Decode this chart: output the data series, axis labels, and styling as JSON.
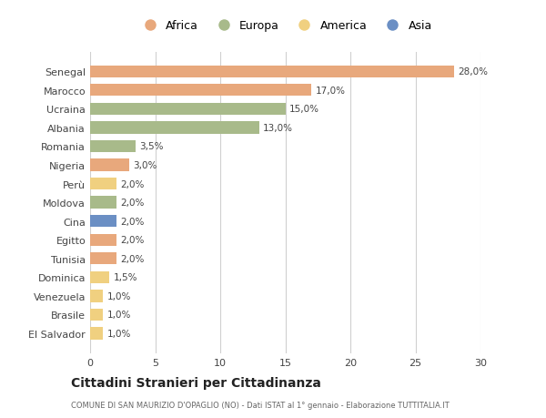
{
  "categories": [
    "El Salvador",
    "Brasile",
    "Venezuela",
    "Dominica",
    "Tunisia",
    "Egitto",
    "Cina",
    "Moldova",
    "Perù",
    "Nigeria",
    "Romania",
    "Albania",
    "Ucraina",
    "Marocco",
    "Senegal"
  ],
  "values": [
    1.0,
    1.0,
    1.0,
    1.5,
    2.0,
    2.0,
    2.0,
    2.0,
    2.0,
    3.0,
    3.5,
    13.0,
    15.0,
    17.0,
    28.0
  ],
  "bar_colors": [
    "#F0D080",
    "#F0D080",
    "#F0D080",
    "#F0D080",
    "#E8A87C",
    "#E8A87C",
    "#6B8FC4",
    "#A8BA8A",
    "#F0D080",
    "#E8A87C",
    "#A8BA8A",
    "#A8BA8A",
    "#A8BA8A",
    "#E8A87C",
    "#E8A87C"
  ],
  "labels": [
    "1,0%",
    "1,0%",
    "1,0%",
    "1,5%",
    "2,0%",
    "2,0%",
    "2,0%",
    "2,0%",
    "2,0%",
    "3,0%",
    "3,5%",
    "13,0%",
    "15,0%",
    "17,0%",
    "28,0%"
  ],
  "legend_order": [
    "Africa",
    "Europa",
    "America",
    "Asia"
  ],
  "legend_colors": {
    "Africa": "#E8A87C",
    "Europa": "#A8BA8A",
    "America": "#F0D080",
    "Asia": "#6B8FC4"
  },
  "xlim": [
    0,
    30
  ],
  "xticks": [
    0,
    5,
    10,
    15,
    20,
    25,
    30
  ],
  "title": "Cittadini Stranieri per Cittadinanza",
  "subtitle": "COMUNE DI SAN MAURIZIO D'OPAGLIO (NO) - Dati ISTAT al 1° gennaio - Elaborazione TUTTITALIA.IT",
  "background_color": "#ffffff",
  "grid_color": "#d0d0d0"
}
